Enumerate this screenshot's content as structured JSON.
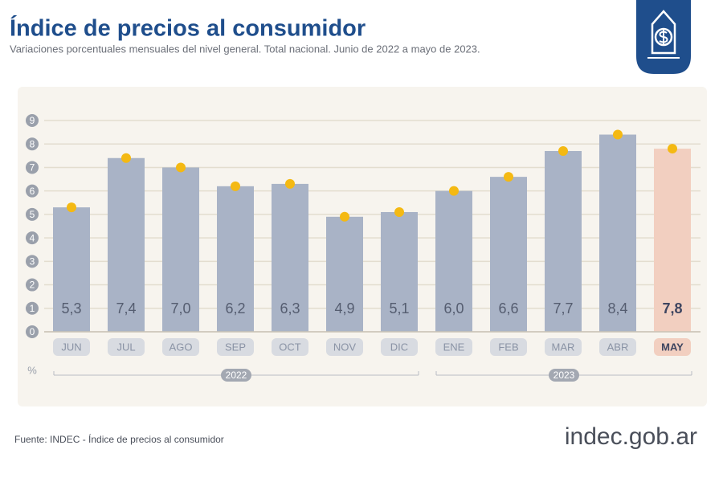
{
  "chart_data": {
    "type": "bar",
    "title": "Índice de precios al consumidor",
    "subtitle": "Variaciones porcentuales mensuales del nivel general. Total nacional. Junio de 2022 a mayo de 2023.",
    "categories": [
      "JUN",
      "JUL",
      "AGO",
      "SEP",
      "OCT",
      "NOV",
      "DIC",
      "ENE",
      "FEB",
      "MAR",
      "ABR",
      "MAY"
    ],
    "values": [
      5.3,
      7.4,
      7.0,
      6.2,
      6.3,
      4.9,
      5.1,
      6.0,
      6.6,
      7.7,
      8.4,
      7.8
    ],
    "value_labels": [
      "5,3",
      "7,4",
      "7,0",
      "6,2",
      "6,3",
      "4,9",
      "5,1",
      "6,0",
      "6,6",
      "7,7",
      "8,4",
      "7,8"
    ],
    "colors": [
      "#a9b3c6",
      "#a9b3c6",
      "#a9b3c6",
      "#a9b3c6",
      "#a9b3c6",
      "#a9b3c6",
      "#a9b3c6",
      "#a9b3c6",
      "#a9b3c6",
      "#a9b3c6",
      "#a9b3c6",
      "#f2cfc0"
    ],
    "marker_color": "#f4b913",
    "ylim": [
      0,
      9
    ],
    "yticks": [
      0,
      1,
      2,
      3,
      4,
      5,
      6,
      7,
      8,
      9
    ],
    "grid": true,
    "y_unit": "%",
    "years": [
      "2022",
      "2023"
    ],
    "source": "Fuente: INDEC - Índice de precios al consumidor",
    "brand": "indec.gob.ar"
  }
}
